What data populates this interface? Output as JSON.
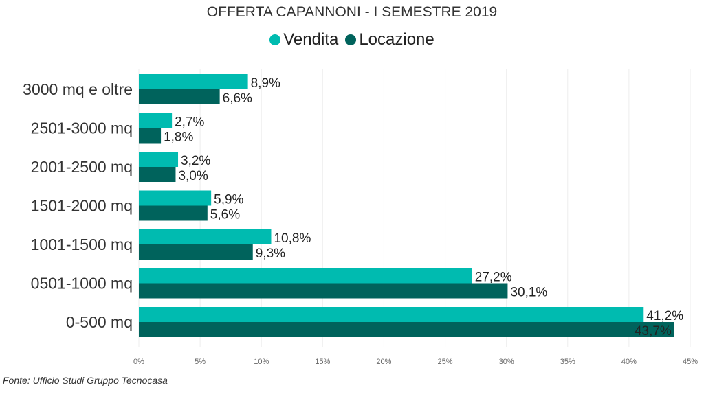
{
  "chart_data": {
    "type": "bar",
    "orientation": "horizontal",
    "title": "OFFERTA CAPANNONI - I SEMESTRE 2019",
    "categories": [
      "3000 mq e oltre",
      "2501-3000 mq",
      "2001-2500 mq",
      "1501-2000 mq",
      "1001-1500 mq",
      "0501-1000 mq",
      "0-500 mq"
    ],
    "series": [
      {
        "name": "Vendita",
        "color": "#00BBB0",
        "values": [
          8.9,
          2.7,
          3.2,
          5.9,
          10.8,
          27.2,
          41.2
        ],
        "labels": [
          "8,9%",
          "2,7%",
          "3,2%",
          "5,9%",
          "10,8%",
          "27,2%",
          "41,2%"
        ]
      },
      {
        "name": "Locazione",
        "color": "#00635C",
        "values": [
          6.6,
          1.8,
          3.0,
          5.6,
          9.3,
          30.1,
          43.7
        ],
        "labels": [
          "6,6%",
          "1,8%",
          "3,0%",
          "5,6%",
          "9,3%",
          "30,1%",
          "43,7%"
        ]
      }
    ],
    "xlim": [
      0,
      45
    ],
    "xticks": [
      "0%",
      "5%",
      "10%",
      "15%",
      "20%",
      "25%",
      "30%",
      "35%",
      "40%",
      "45%"
    ],
    "grid": true,
    "legend": "top-center"
  },
  "source": "Fonte: Ufficio Studi Gruppo Tecnocasa"
}
